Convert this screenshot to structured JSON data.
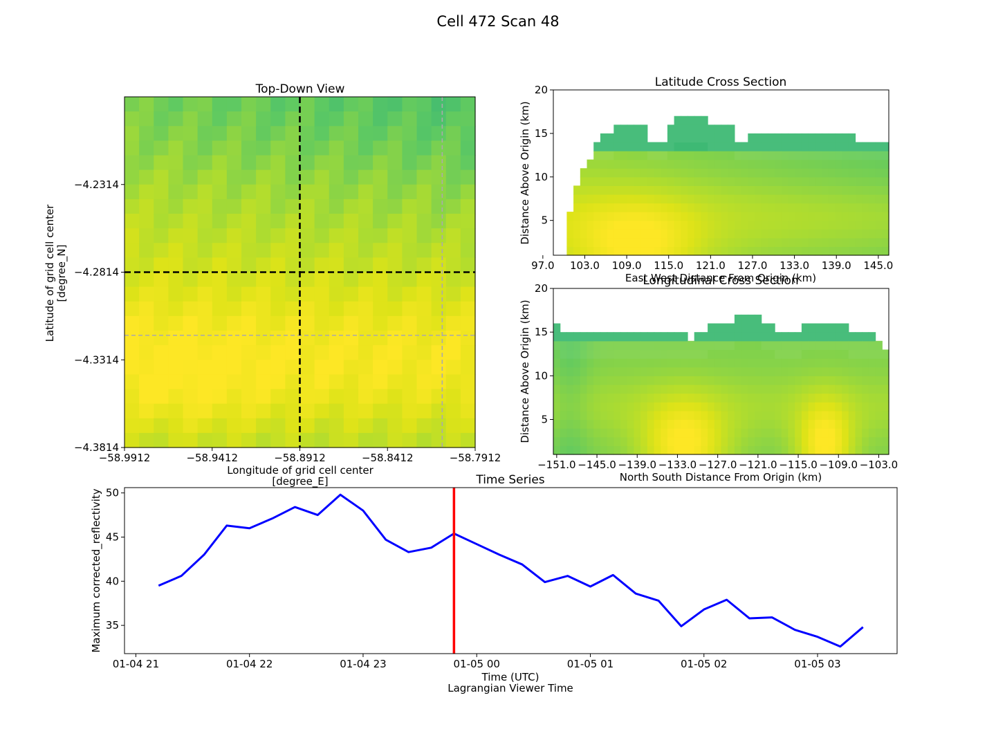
{
  "figure": {
    "title": "Cell 472 Scan 48"
  },
  "colors": {
    "series": "#0000ff",
    "marker": "#ff0000",
    "crosshair": "#000000",
    "guide": "#aaaaaa"
  },
  "chart_data": [
    {
      "type": "heatmap",
      "title": "Top-Down View",
      "xlabel": "Longitude of grid cell center\n[degree_E]",
      "ylabel": "Latitude of grid cell center\n[degree_N]",
      "xticks": [
        "−58.9912",
        "−58.9412",
        "−58.8912",
        "−58.8412",
        "−58.7912"
      ],
      "xtick_values": [
        -58.9912,
        -58.9412,
        -58.8912,
        -58.8412,
        -58.7912
      ],
      "yticks": [
        "−4.2314",
        "−4.2814",
        "−4.3314",
        "−4.3814"
      ],
      "ytick_values": [
        -4.2314,
        -4.2814,
        -4.3314,
        -4.3814
      ],
      "xlim": [
        -58.9912,
        -58.7912
      ],
      "ylim": [
        -4.3814,
        -4.1814
      ],
      "colormap": "viridis",
      "crosshair_lon": -58.8912,
      "crosshair_lat": -4.2814,
      "guide_lon": -58.81,
      "guide_lat": -4.3174
    },
    {
      "type": "heatmap",
      "title": "Latitude Cross Section",
      "xlabel": "East West Distance From Origin (km)",
      "ylabel": "Distance Above Origin (km)",
      "xticks": [
        "97.0",
        "103.0",
        "109.0",
        "115.0",
        "121.0",
        "127.0",
        "133.0",
        "139.0",
        "145.0"
      ],
      "xtick_values": [
        97,
        103,
        109,
        115,
        121,
        127,
        133,
        139,
        145
      ],
      "yticks": [
        "5",
        "10",
        "15",
        "20"
      ],
      "ytick_values": [
        5,
        10,
        15,
        20
      ],
      "xlim": [
        98.5,
        146.5
      ],
      "ylim": [
        1,
        20
      ],
      "colormap": "viridis"
    },
    {
      "type": "heatmap",
      "title": "Longitudinal Cross Section",
      "xlabel": "North South Distance From Origin (km)",
      "ylabel": "Distance Above Origin (km)",
      "xticks": [
        "−151.0",
        "−145.0",
        "−139.0",
        "−133.0",
        "−127.0",
        "−121.0",
        "−115.0",
        "−109.0",
        "−103.0"
      ],
      "xtick_values": [
        -151,
        -145,
        -139,
        -133,
        -127,
        -121,
        -115,
        -109,
        -103
      ],
      "yticks": [
        "5",
        "10",
        "15",
        "20"
      ],
      "ytick_values": [
        5,
        10,
        15,
        20
      ],
      "xlim": [
        -151.5,
        -101.5
      ],
      "ylim": [
        1,
        20
      ],
      "colormap": "viridis"
    },
    {
      "type": "line",
      "title": "Time Series",
      "xlabel": "Time (UTC)\nLagrangian Viewer Time",
      "ylabel": "Maximum corrected_reflectivity",
      "xticks": [
        "01-04 21",
        "01-04 22",
        "01-04 23",
        "01-05 00",
        "01-05 01",
        "01-05 02",
        "01-05 03"
      ],
      "xtick_values": [
        "21:00",
        "22:00",
        "23:00",
        "00:00",
        "01:00",
        "02:00",
        "03:00"
      ],
      "yticks": [
        "35",
        "40",
        "45",
        "50"
      ],
      "ytick_values": [
        35,
        40,
        45,
        50
      ],
      "ylim": [
        31.8,
        50.6
      ],
      "xlim": [
        "20:54",
        "03:42"
      ],
      "marker_time": "23:48",
      "x": [
        "21:12",
        "21:24",
        "21:36",
        "21:48",
        "22:00",
        "22:12",
        "22:24",
        "22:36",
        "22:48",
        "23:00",
        "23:12",
        "23:24",
        "23:36",
        "23:48",
        "00:00",
        "00:12",
        "00:24",
        "00:36",
        "00:48",
        "01:00",
        "01:12",
        "01:24",
        "01:36",
        "01:48",
        "02:00",
        "02:12",
        "02:24",
        "02:36",
        "02:48",
        "03:00",
        "03:12",
        "03:24"
      ],
      "series": [
        {
          "values": [
            39.5,
            40.6,
            43.0,
            46.3,
            46.0,
            47.1,
            48.4,
            47.5,
            49.8,
            48.0,
            44.7,
            43.3,
            43.8,
            45.4,
            44.2,
            43.0,
            41.9,
            39.9,
            40.6,
            39.4,
            40.7,
            38.6,
            37.8,
            34.9,
            36.8,
            37.9,
            35.8,
            35.9,
            34.5,
            33.7,
            32.6,
            34.8
          ]
        }
      ]
    }
  ]
}
